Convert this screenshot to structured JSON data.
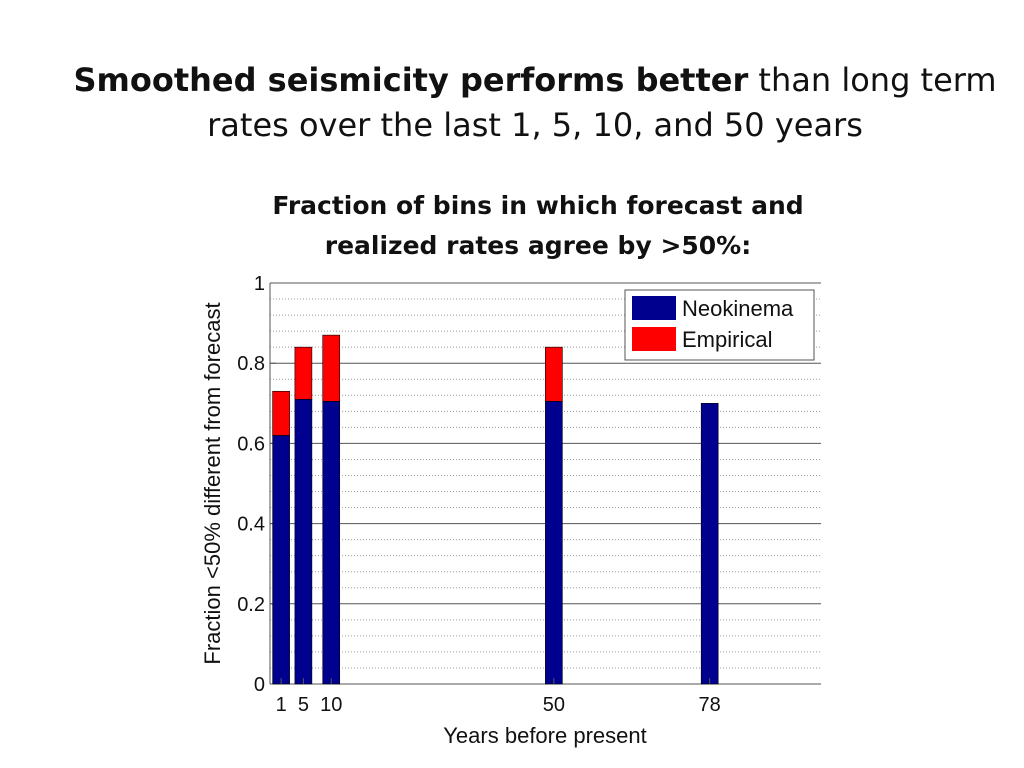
{
  "slide": {
    "title_bold": "Smoothed seismicity performs better",
    "title_rest": " than long term rates over the last 1, 5, 10, and 50 years",
    "chart_heading": "Fraction of bins in which forecast and realized rates agree by >50%:"
  },
  "colors": {
    "neokinema": "#00008f",
    "empirical": "#ff0000",
    "grid": "#9a9a9a",
    "axis": "#555555"
  },
  "chart_data": {
    "type": "bar",
    "stacked": true,
    "title": "",
    "xlabel": "Years before present",
    "ylabel": "Fraction <50% different from forecast",
    "x": [
      1,
      5,
      10,
      50,
      78
    ],
    "xticks": [
      "1",
      "5",
      "10",
      "50",
      "78"
    ],
    "xlim": [
      -1,
      98
    ],
    "ylim": [
      0,
      1
    ],
    "yticks": [
      "0",
      "0.2",
      "0.4",
      "0.6",
      "0.8",
      "1"
    ],
    "grid": true,
    "legend_position": "top-right",
    "series": [
      {
        "name": "Neokinema",
        "values": [
          0.62,
          0.71,
          0.705,
          0.705,
          0.7
        ]
      },
      {
        "name": "Empirical",
        "values": [
          0.11,
          0.13,
          0.165,
          0.135,
          0
        ]
      }
    ]
  }
}
